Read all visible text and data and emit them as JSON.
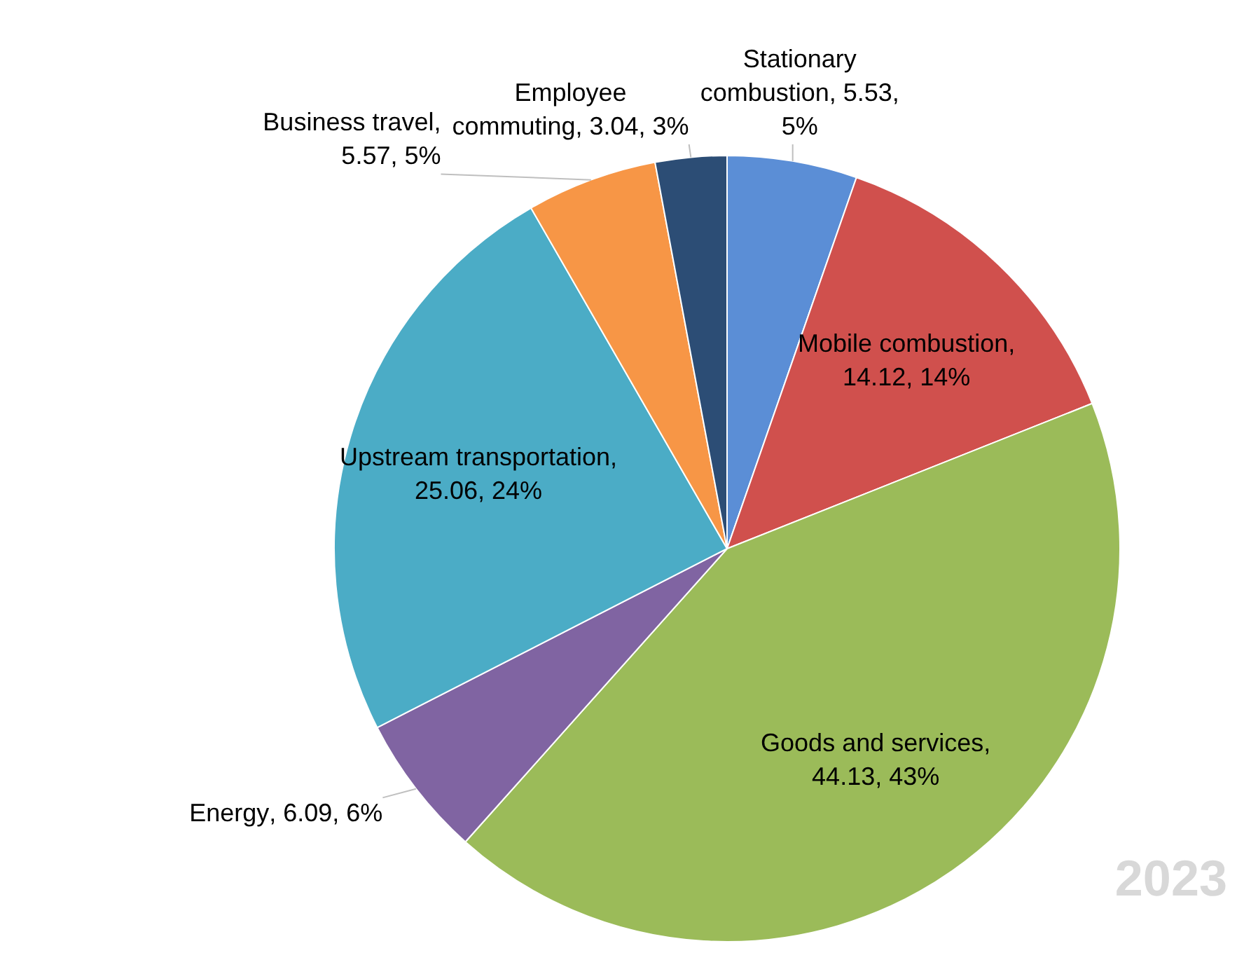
{
  "chart_data": {
    "type": "pie",
    "categories": [
      "Stationary combustion",
      "Mobile combustion",
      "Goods and services",
      "Energy",
      "Upstream transportation",
      "Business travel",
      "Employee commuting"
    ],
    "values": [
      5.53,
      14.12,
      44.13,
      6.09,
      25.06,
      5.57,
      3.04
    ],
    "colors": [
      "#5b8ed6",
      "#d0504d",
      "#9bbb59",
      "#8064a2",
      "#4bacc6",
      "#f79646",
      "#2c4d75"
    ],
    "value_labels": [
      ", 5.53, 5%",
      ", 14.12, 14%",
      ", 44.13, 43%",
      ", 6.09, 6%",
      ", 25.06, 24%",
      ", 5.57, 5%",
      ", 3.04, 3%"
    ],
    "legend": false,
    "annotations": [
      "2023"
    ]
  }
}
